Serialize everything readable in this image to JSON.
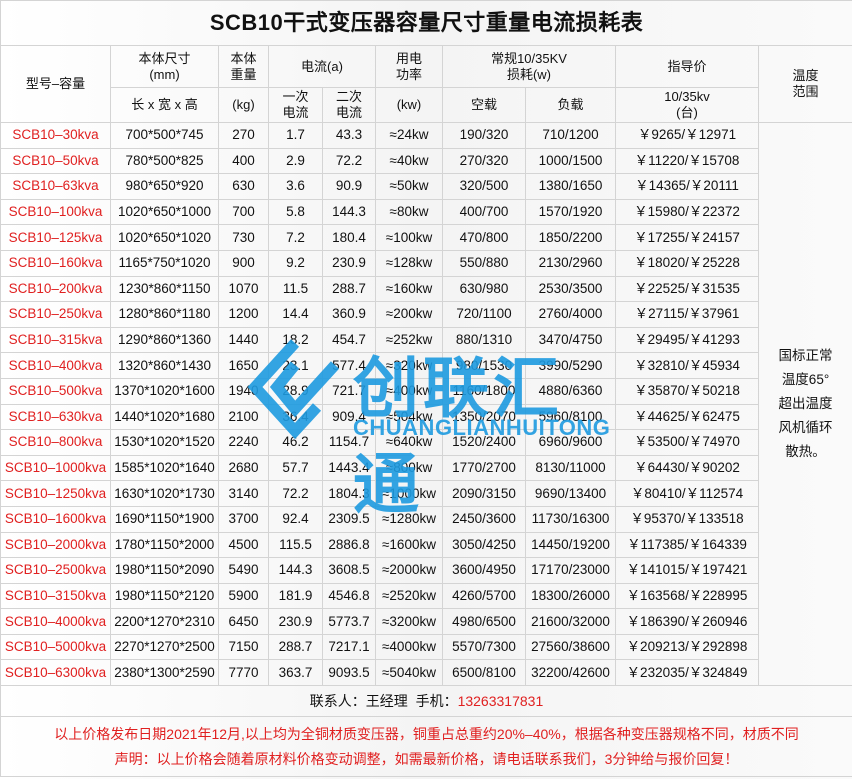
{
  "title": "SCB10干式变压器容量尺寸重量电流损耗表",
  "headers": {
    "model": "型号–容量",
    "size": "本体尺寸\n(mm)",
    "size_sub": "长 x 宽 x 高",
    "weight": "本体\n重量",
    "weight_sub": "(kg)",
    "current": "电流(a)",
    "current1": "一次\n电流",
    "current2": "二次\n电流",
    "power": "用电\n功率",
    "power_sub": "(kw)",
    "loss": "常规10/35KV\n损耗(w)",
    "loss_noload": "空载",
    "loss_load": "负载",
    "price": "指导价",
    "price_sub": "10/35kv\n(台)",
    "temp": "温度\n范围"
  },
  "temp_text": "国标正常\n温度65°\n超出温度\n风机循环\n散热。",
  "rows": [
    [
      "SCB10–30kva",
      "700*500*745",
      "270",
      "1.7",
      "43.3",
      "≈24kw",
      "190/320",
      "710/1200",
      "￥9265/￥12971"
    ],
    [
      "SCB10–50kva",
      "780*500*825",
      "400",
      "2.9",
      "72.2",
      "≈40kw",
      "270/320",
      "1000/1500",
      "￥11220/￥15708"
    ],
    [
      "SCB10–63kva",
      "980*650*920",
      "630",
      "3.6",
      "90.9",
      "≈50kw",
      "320/500",
      "1380/1650",
      "￥14365/￥20111"
    ],
    [
      "SCB10–100kva",
      "1020*650*1000",
      "700",
      "5.8",
      "144.3",
      "≈80kw",
      "400/700",
      "1570/1920",
      "￥15980/￥22372"
    ],
    [
      "SCB10–125kva",
      "1020*650*1020",
      "730",
      "7.2",
      "180.4",
      "≈100kw",
      "470/800",
      "1850/2200",
      "￥17255/￥24157"
    ],
    [
      "SCB10–160kva",
      "1165*750*1020",
      "900",
      "9.2",
      "230.9",
      "≈128kw",
      "550/880",
      "2130/2960",
      "￥18020/￥25228"
    ],
    [
      "SCB10–200kva",
      "1230*860*1150",
      "1070",
      "11.5",
      "288.7",
      "≈160kw",
      "630/980",
      "2530/3500",
      "￥22525/￥31535"
    ],
    [
      "SCB10–250kva",
      "1280*860*1180",
      "1200",
      "14.4",
      "360.9",
      "≈200kw",
      "720/1100",
      "2760/4000",
      "￥27115/￥37961"
    ],
    [
      "SCB10–315kva",
      "1290*860*1360",
      "1440",
      "18.2",
      "454.7",
      "≈252kw",
      "880/1310",
      "3470/4750",
      "￥29495/￥41293"
    ],
    [
      "SCB10–400kva",
      "1320*860*1430",
      "1650",
      "23.1",
      "577.4",
      "≈320kw",
      "980/1530",
      "3990/5290",
      "￥32810/￥45934"
    ],
    [
      "SCB10–500kva",
      "1370*1020*1600",
      "1940",
      "28.9",
      "721.7",
      "≈400kw",
      "1160/1800",
      "4880/6360",
      "￥35870/￥50218"
    ],
    [
      "SCB10–630kva",
      "1440*1020*1680",
      "2100",
      "36.4",
      "909.4",
      "≈504kw",
      "1350/2070",
      "5960/8100",
      "￥44625/￥62475"
    ],
    [
      "SCB10–800kva",
      "1530*1020*1520",
      "2240",
      "46.2",
      "1154.7",
      "≈640kw",
      "1520/2400",
      "6960/9600",
      "￥53500/￥74970"
    ],
    [
      "SCB10–1000kva",
      "1585*1020*1640",
      "2680",
      "57.7",
      "1443.4",
      "≈800kw",
      "1770/2700",
      "8130/11000",
      "￥64430/￥90202"
    ],
    [
      "SCB10–1250kva",
      "1630*1020*1730",
      "3140",
      "72.2",
      "1804.3",
      "≈1000kw",
      "2090/3150",
      "9690/13400",
      "￥80410/￥112574"
    ],
    [
      "SCB10–1600kva",
      "1690*1150*1900",
      "3700",
      "92.4",
      "2309.5",
      "≈1280kw",
      "2450/3600",
      "11730/16300",
      "￥95370/￥133518"
    ],
    [
      "SCB10–2000kva",
      "1780*1150*2000",
      "4500",
      "115.5",
      "2886.8",
      "≈1600kw",
      "3050/4250",
      "14450/19200",
      "￥117385/￥164339"
    ],
    [
      "SCB10–2500kva",
      "1980*1150*2090",
      "5490",
      "144.3",
      "3608.5",
      "≈2000kw",
      "3600/4950",
      "17170/23000",
      "￥141015/￥197421"
    ],
    [
      "SCB10–3150kva",
      "1980*1150*2120",
      "5900",
      "181.9",
      "4546.8",
      "≈2520kw",
      "4260/5700",
      "18300/26000",
      "￥163568/￥228995"
    ],
    [
      "SCB10–4000kva",
      "2200*1270*2310",
      "6450",
      "230.9",
      "5773.7",
      "≈3200kw",
      "4980/6500",
      "21600/32000",
      "￥186390/￥260946"
    ],
    [
      "SCB10–5000kva",
      "2270*1270*2500",
      "7150",
      "288.7",
      "7217.1",
      "≈4000kw",
      "5570/7300",
      "27560/38600",
      "￥209213/￥292898"
    ],
    [
      "SCB10–6300kva",
      "2380*1300*2590",
      "7770",
      "363.7",
      "9093.5",
      "≈5040kw",
      "6500/8100",
      "32200/42600",
      "￥232035/￥324849"
    ]
  ],
  "contact": {
    "label": "联系人：王经理  手机：",
    "phone": "13263317831"
  },
  "notes": [
    "以上价格发布日期2021年12月,以上均为全铜材质变压器，铜重占总重约20%–40%，根据各种变压器规格不同，材质不同",
    "声明：以上价格会随着原材料价格变动调整，如需最新价格，请电话联系我们，3分钟给与报价回复！"
  ],
  "watermark": {
    "cn": "创联汇通",
    "en": "CHUANGLIANHUITONG",
    "color": "#1e9be0"
  },
  "colors": {
    "accent": "#e02020"
  }
}
